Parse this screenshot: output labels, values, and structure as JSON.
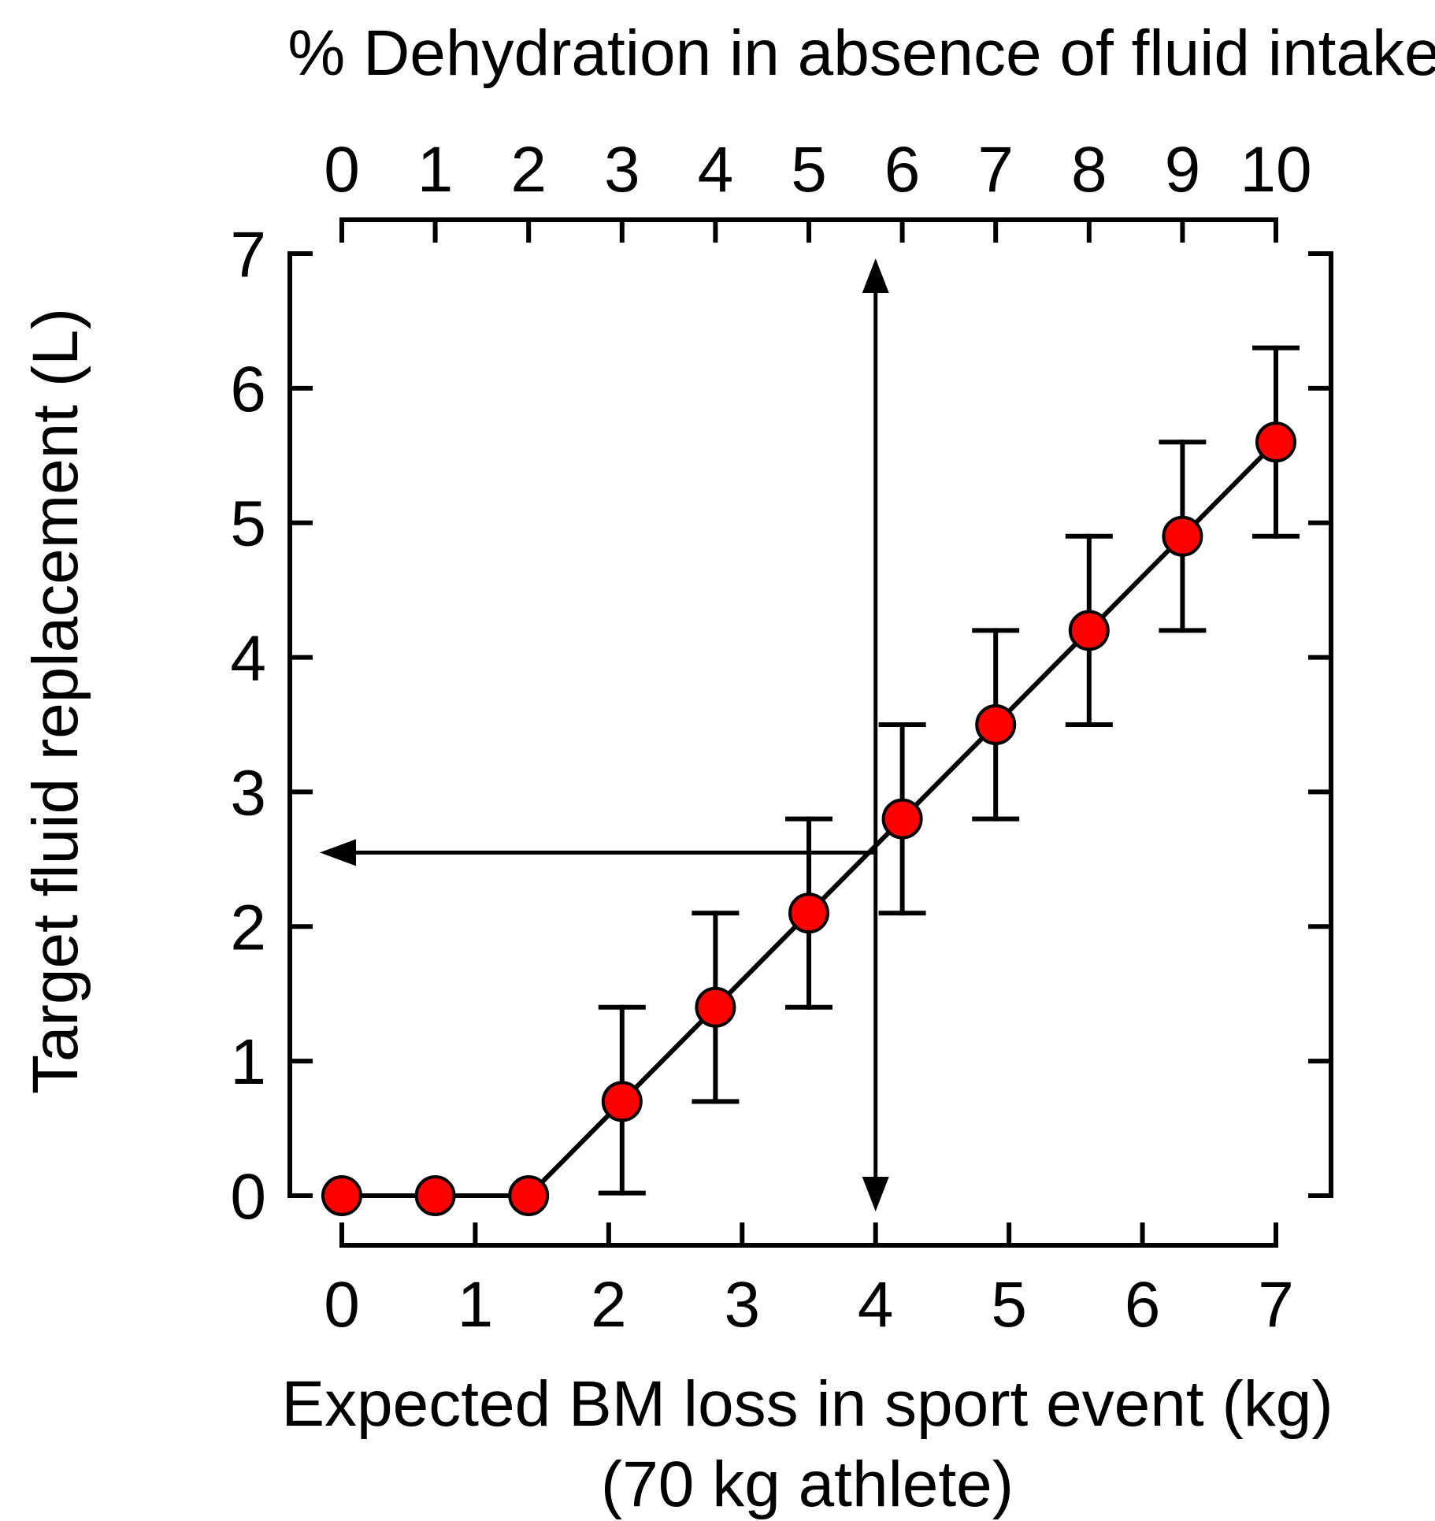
{
  "chart_data": {
    "type": "scatter",
    "title": "",
    "top_axis": {
      "label": "% Dehydration in absence of fluid intake",
      "range": [
        0,
        10
      ],
      "ticks": [
        "0",
        "1",
        "2",
        "3",
        "4",
        "5",
        "6",
        "7",
        "8",
        "9",
        "10"
      ]
    },
    "x_axis": {
      "label": "Expected BM loss in sport event (kg)",
      "sublabel": "(70 kg athlete)",
      "range": [
        0,
        7
      ],
      "ticks": [
        "0",
        "1",
        "2",
        "3",
        "4",
        "5",
        "6",
        "7"
      ]
    },
    "y_axis": {
      "label": "Target fluid replacement (L)",
      "range": [
        0,
        7
      ],
      "ticks": [
        "0",
        "1",
        "2",
        "3",
        "4",
        "5",
        "6",
        "7"
      ]
    },
    "series": [
      {
        "name": "Target fluid replacement",
        "dehydration_pct": [
          0,
          1,
          2,
          3,
          4,
          5,
          6,
          7,
          8,
          9,
          10
        ],
        "bm_loss_kg": [
          0,
          0.7,
          1.4,
          2.1,
          2.8,
          3.5,
          4.2,
          4.9,
          5.6,
          6.3,
          7.0
        ],
        "values": [
          0,
          0,
          0,
          0.7,
          1.4,
          2.1,
          2.8,
          3.5,
          4.2,
          4.9,
          5.6
        ],
        "error_low": [
          null,
          null,
          null,
          0.02,
          0.7,
          1.4,
          2.1,
          2.8,
          3.5,
          4.2,
          4.9
        ],
        "error_high": [
          null,
          null,
          null,
          1.4,
          2.1,
          2.8,
          3.5,
          4.2,
          4.9,
          5.6,
          6.3
        ],
        "marker_color": "#ff0000",
        "line_color": "#000000"
      }
    ],
    "annotations": [
      {
        "type": "double-arrow-vertical",
        "x_bm_loss_kg": 4.0,
        "y_range": [
          0,
          7
        ]
      },
      {
        "type": "arrow-horizontal",
        "from_bm_loss_kg": 4.0,
        "to_bm_loss_kg": 0,
        "y_value": 2.55
      }
    ]
  }
}
